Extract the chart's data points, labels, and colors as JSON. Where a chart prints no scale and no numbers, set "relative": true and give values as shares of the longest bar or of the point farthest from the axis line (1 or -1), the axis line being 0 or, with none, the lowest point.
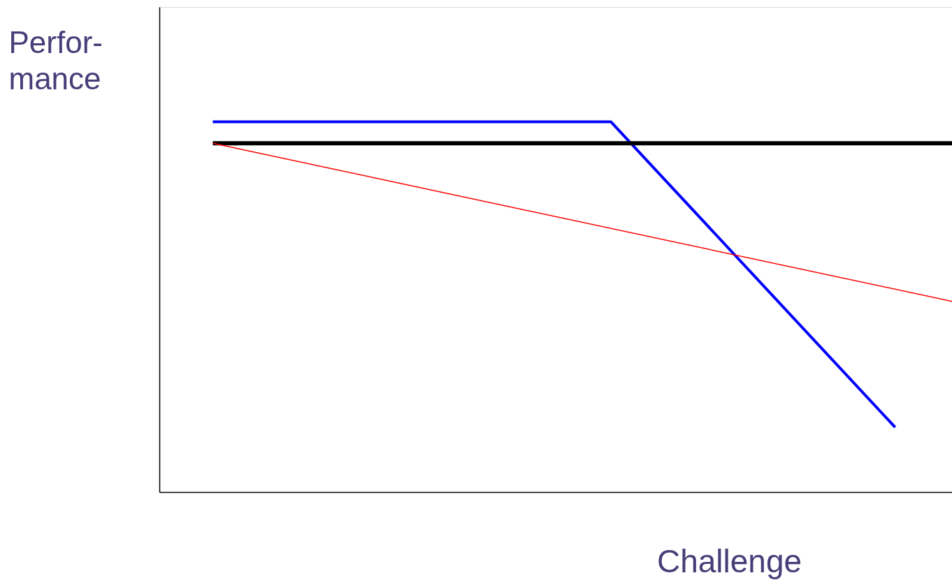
{
  "chart_data": {
    "type": "line",
    "relative": true,
    "ylabel": "Perfor-\nmance",
    "xlabel": "Challenge",
    "grid": false,
    "categories": [
      null,
      null,
      null,
      null,
      null,
      null,
      null,
      null,
      null,
      null,
      null,
      null,
      null,
      null
    ],
    "series": [
      {
        "color": "#0000ff",
        "values": [
          1,
          null,
          null,
          null,
          null,
          null,
          null,
          1,
          null,
          null,
          null,
          null,
          0.175,
          null
        ]
      },
      {
        "color": "#000000",
        "values": [
          0.942,
          null,
          null,
          null,
          null,
          null,
          null,
          null,
          null,
          null,
          null,
          null,
          null,
          0.942
        ]
      },
      {
        "color": "#ff0000",
        "values": [
          0.942,
          null,
          null,
          null,
          null,
          null,
          null,
          null,
          null,
          null,
          null,
          null,
          null,
          0.515
        ]
      }
    ]
  }
}
